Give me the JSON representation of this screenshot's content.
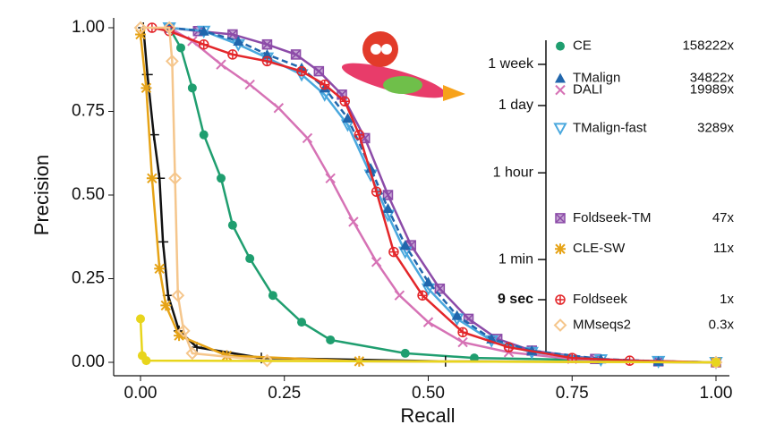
{
  "chart_data": {
    "type": "line",
    "x_label": "Recall",
    "y_label": "Precision",
    "xlim": [
      0,
      1
    ],
    "ylim": [
      0,
      1
    ],
    "xticks": [
      {
        "value": 0,
        "label": "0.00"
      },
      {
        "value": 0.25,
        "label": "0.25"
      },
      {
        "value": 0.5,
        "label": "0.50"
      },
      {
        "value": 0.75,
        "label": "0.75"
      },
      {
        "value": 1,
        "label": "1.00"
      }
    ],
    "yticks": [
      {
        "value": 0,
        "label": "0.00"
      },
      {
        "value": 0.25,
        "label": "0.25"
      },
      {
        "value": 0.5,
        "label": "0.50"
      },
      {
        "value": 0.75,
        "label": "0.75"
      },
      {
        "value": 1,
        "label": "1.00"
      }
    ],
    "time_ticks": [
      {
        "value": 9,
        "label": "9 sec",
        "bold": true
      },
      {
        "value": 60,
        "label": "1 min"
      },
      {
        "value": 3600,
        "label": "1 hour"
      },
      {
        "value": 86400,
        "label": "1 day"
      },
      {
        "value": 604800,
        "label": "1 week"
      }
    ],
    "series": [
      {
        "name": "CE",
        "color": "#1f9e6f",
        "marker": "circle",
        "speedup": 158222,
        "speedup_label": "158222x",
        "x": [
          0.05,
          0.07,
          0.09,
          0.11,
          0.14,
          0.16,
          0.19,
          0.23,
          0.28,
          0.33,
          0.46,
          0.58,
          1.0
        ],
        "values": [
          1.0,
          0.94,
          0.82,
          0.68,
          0.55,
          0.41,
          0.31,
          0.2,
          0.12,
          0.067,
          0.027,
          0.013,
          0.0
        ]
      },
      {
        "name": "DALI",
        "color": "#d672b5",
        "marker": "x",
        "speedup": 19989,
        "speedup_label": "19989x",
        "x": [
          0.05,
          0.09,
          0.14,
          0.19,
          0.24,
          0.29,
          0.33,
          0.37,
          0.41,
          0.45,
          0.5,
          0.56,
          0.64,
          0.75,
          0.9,
          1.0
        ],
        "values": [
          1.0,
          0.96,
          0.89,
          0.83,
          0.76,
          0.67,
          0.55,
          0.42,
          0.3,
          0.2,
          0.12,
          0.06,
          0.03,
          0.01,
          0.003,
          0.0
        ]
      },
      {
        "name": "Foldseek-TM",
        "color": "#8c4ba8",
        "marker": "square-x",
        "speedup": 47,
        "speedup_label": "47x",
        "x": [
          0.05,
          0.1,
          0.16,
          0.22,
          0.27,
          0.31,
          0.35,
          0.39,
          0.43,
          0.47,
          0.52,
          0.57,
          0.62,
          0.68,
          0.79,
          0.9,
          1.0
        ],
        "values": [
          1.0,
          0.99,
          0.98,
          0.95,
          0.92,
          0.87,
          0.8,
          0.67,
          0.5,
          0.35,
          0.22,
          0.13,
          0.07,
          0.035,
          0.01,
          0.003,
          0.0
        ]
      },
      {
        "name": "TMalign-fast",
        "color": "#4aa8de",
        "marker": "triangle-down",
        "speedup": 3289,
        "speedup_label": "3289x",
        "x": [
          0.05,
          0.11,
          0.17,
          0.22,
          0.28,
          0.32,
          0.36,
          0.4,
          0.43,
          0.46,
          0.5,
          0.55,
          0.61,
          0.68,
          0.8,
          0.9,
          1.0
        ],
        "values": [
          1.0,
          0.99,
          0.95,
          0.91,
          0.86,
          0.8,
          0.71,
          0.56,
          0.44,
          0.33,
          0.22,
          0.13,
          0.065,
          0.03,
          0.008,
          0.003,
          0.0
        ]
      },
      {
        "name": "TMalign",
        "color": "#2166ac",
        "marker": "triangle",
        "dashed": true,
        "speedup": 34822,
        "speedup_label": "34822x",
        "x": [
          0.05,
          0.11,
          0.17,
          0.22,
          0.28,
          0.32,
          0.36,
          0.4,
          0.43,
          0.46,
          0.5,
          0.55,
          0.61,
          0.68,
          0.8,
          0.9,
          1.0
        ],
        "values": [
          1.0,
          0.99,
          0.96,
          0.92,
          0.88,
          0.82,
          0.73,
          0.58,
          0.46,
          0.35,
          0.24,
          0.14,
          0.07,
          0.035,
          0.01,
          0.003,
          0.0
        ]
      },
      {
        "name": "Foldseek",
        "color": "#e3262a",
        "marker": "circle-plus",
        "speedup": 1,
        "speedup_label": "1x",
        "x": [
          0.02,
          0.05,
          0.11,
          0.16,
          0.22,
          0.28,
          0.32,
          0.355,
          0.38,
          0.41,
          0.44,
          0.49,
          0.56,
          0.64,
          0.75,
          0.85,
          1.0
        ],
        "values": [
          1.0,
          0.99,
          0.95,
          0.92,
          0.9,
          0.87,
          0.83,
          0.78,
          0.68,
          0.51,
          0.33,
          0.2,
          0.09,
          0.045,
          0.013,
          0.005,
          0.0
        ]
      },
      {
        "color": "#111111",
        "marker": "plus",
        "x": [
          0.005,
          0.012,
          0.023,
          0.033,
          0.039,
          0.048,
          0.067,
          0.098,
          0.21,
          0.53,
          1.0
        ],
        "values": [
          1.0,
          0.86,
          0.68,
          0.55,
          0.36,
          0.2,
          0.094,
          0.045,
          0.013,
          0.003,
          0.0
        ]
      },
      {
        "name": "CLE-SW",
        "color": "#e6a317",
        "marker": "asterisk",
        "speedup": 11,
        "speedup_label": "11x",
        "x": [
          0.0,
          0.01,
          0.02,
          0.033,
          0.044,
          0.067,
          0.15,
          0.38,
          1.0
        ],
        "values": [
          0.98,
          0.82,
          0.55,
          0.28,
          0.17,
          0.08,
          0.02,
          0.003,
          0.0
        ]
      },
      {
        "name": "MMseqs2",
        "color": "#f5c68c",
        "marker": "diamond",
        "speedup": 0.3,
        "speedup_label": "0.3x",
        "x": [
          0.0,
          0.05,
          0.055,
          0.06,
          0.065,
          0.075,
          0.09,
          0.22,
          1.0
        ],
        "values": [
          1.0,
          1.0,
          0.9,
          0.55,
          0.2,
          0.094,
          0.027,
          0.005,
          0.0
        ]
      },
      {
        "color": "#e8d51c",
        "marker": "circle",
        "x": [
          0.0,
          0.003,
          0.01,
          1.0
        ],
        "values": [
          0.13,
          0.02,
          0.005,
          0.0
        ]
      }
    ]
  }
}
